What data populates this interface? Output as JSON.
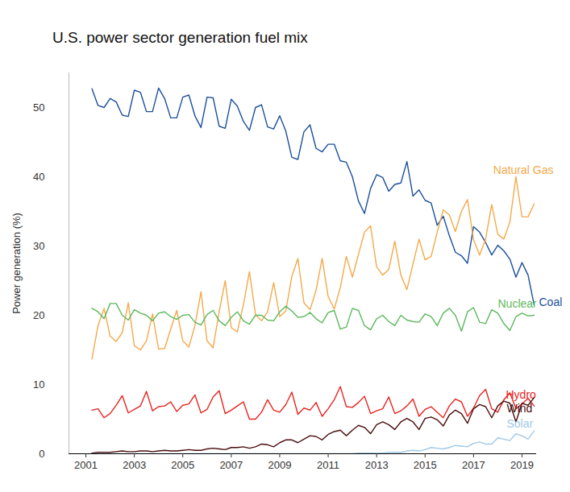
{
  "chart_data": {
    "type": "line",
    "title": "U.S. power sector generation fuel mix",
    "y_label": "Power generation (%)",
    "x": [
      2001.25,
      2001.5,
      2001.75,
      2002,
      2002.25,
      2002.5,
      2002.75,
      2003,
      2003.25,
      2003.5,
      2003.75,
      2004,
      2004.25,
      2004.5,
      2004.75,
      2005,
      2005.25,
      2005.5,
      2005.75,
      2006,
      2006.25,
      2006.5,
      2006.75,
      2007,
      2007.25,
      2007.5,
      2007.75,
      2008,
      2008.25,
      2008.5,
      2008.75,
      2009,
      2009.25,
      2009.5,
      2009.75,
      2010,
      2010.25,
      2010.5,
      2010.75,
      2011,
      2011.25,
      2011.5,
      2011.75,
      2012,
      2012.25,
      2012.5,
      2012.75,
      2013,
      2013.25,
      2013.5,
      2013.75,
      2014,
      2014.25,
      2014.5,
      2014.75,
      2015,
      2015.25,
      2015.5,
      2015.75,
      2016,
      2016.25,
      2016.5,
      2016.75,
      2017,
      2017.25,
      2017.5,
      2017.75,
      2018,
      2018.25,
      2018.5,
      2018.75,
      2019,
      2019.25,
      2019.5
    ],
    "xlim": [
      2000.3,
      2019.6
    ],
    "xticks": [
      2001,
      2003,
      2005,
      2007,
      2009,
      2011,
      2013,
      2015,
      2017,
      2019
    ],
    "ylim": [
      0,
      55
    ],
    "yticks": [
      0,
      10,
      20,
      30,
      40,
      50
    ],
    "grid": false,
    "series": [
      {
        "name": "Coal",
        "color": "#1b4f9c",
        "values": [
          52.7,
          50.3,
          50.0,
          51.3,
          50.8,
          48.9,
          48.7,
          52.5,
          52.2,
          49.4,
          49.4,
          52.8,
          51.3,
          48.5,
          48.5,
          51.5,
          51.8,
          48.8,
          47.1,
          51.5,
          51.4,
          47.3,
          47.0,
          51.2,
          50.2,
          48.0,
          46.7,
          50.0,
          50.4,
          47.2,
          46.9,
          48.8,
          46.6,
          42.8,
          42.5,
          46.5,
          47.5,
          44.1,
          43.6,
          44.7,
          44.7,
          42.3,
          42.1,
          40.0,
          36.5,
          34.7,
          38.3,
          40.3,
          39.9,
          37.9,
          38.9,
          39.1,
          42.2,
          37.2,
          38.1,
          36.6,
          36.2,
          33.0,
          34.3,
          31.5,
          29.1,
          28.6,
          27.5,
          32.8,
          32.0,
          30.5,
          28.7,
          30.1,
          29.3,
          28.1,
          25.5,
          27.6,
          25.8,
          21.5
        ]
      },
      {
        "name": "Natural Gas",
        "color": "#f5a94a",
        "values": [
          13.7,
          18.5,
          21.0,
          17.0,
          16.2,
          17.5,
          21.8,
          15.6,
          15.0,
          16.3,
          20.2,
          15.1,
          15.2,
          18.0,
          20.7,
          16.3,
          15.4,
          18.5,
          23.4,
          16.3,
          15.3,
          20.5,
          25.0,
          18.2,
          17.6,
          21.5,
          26.3,
          20.1,
          19.2,
          20.5,
          24.7,
          19.8,
          20.6,
          25.6,
          28.2,
          21.8,
          20.8,
          23.6,
          28.2,
          22.7,
          20.9,
          24.0,
          28.5,
          25.5,
          28.8,
          32.0,
          32.9,
          27.0,
          25.8,
          26.6,
          30.7,
          25.8,
          23.7,
          27.4,
          31.0,
          28.0,
          28.5,
          32.0,
          35.2,
          34.5,
          32.1,
          35.0,
          36.7,
          30.9,
          28.7,
          31.0,
          36.0,
          31.7,
          31.0,
          33.5,
          40.0,
          34.2,
          34.2,
          36.1
        ]
      },
      {
        "name": "Nuclear",
        "color": "#5cb85c",
        "values": [
          21.0,
          20.5,
          19.5,
          21.7,
          21.7,
          20.0,
          19.3,
          20.8,
          20.3,
          20.0,
          19.2,
          20.3,
          20.5,
          19.8,
          19.4,
          20.0,
          20.1,
          19.0,
          18.6,
          20.1,
          20.7,
          19.2,
          18.5,
          19.7,
          20.5,
          19.2,
          18.7,
          20.0,
          20.0,
          19.3,
          19.2,
          20.5,
          21.3,
          20.6,
          19.7,
          19.8,
          20.4,
          19.5,
          18.9,
          20.4,
          20.7,
          18.0,
          18.3,
          21.0,
          20.7,
          18.5,
          17.9,
          19.5,
          20.0,
          19.1,
          18.5,
          20.0,
          19.3,
          19.1,
          19.0,
          20.2,
          19.8,
          18.5,
          20.3,
          21.0,
          20.0,
          17.7,
          20.5,
          21.1,
          19.0,
          18.8,
          20.8,
          20.3,
          18.8,
          17.8,
          19.8,
          20.3,
          19.9,
          20.0
        ]
      },
      {
        "name": "Hydro",
        "color": "#e8231e",
        "values": [
          6.3,
          6.5,
          5.2,
          5.8,
          7.0,
          8.4,
          5.9,
          6.4,
          6.9,
          9.0,
          6.2,
          6.8,
          6.9,
          7.5,
          6.1,
          7.0,
          7.2,
          8.5,
          5.9,
          6.4,
          8.2,
          9.1,
          5.8,
          6.3,
          6.9,
          7.5,
          5.0,
          5.0,
          6.0,
          7.8,
          6.3,
          6.0,
          7.1,
          8.9,
          5.7,
          6.6,
          6.3,
          7.4,
          5.4,
          6.5,
          7.8,
          9.7,
          6.8,
          6.7,
          7.4,
          8.3,
          5.8,
          6.2,
          6.5,
          8.2,
          5.8,
          6.2,
          6.9,
          7.9,
          5.4,
          6.4,
          6.8,
          6.0,
          5.2,
          6.9,
          7.9,
          7.5,
          5.4,
          6.6,
          8.4,
          9.3,
          6.5,
          6.0,
          7.8,
          8.8,
          6.5,
          7.2,
          8.0,
          6.9
        ]
      },
      {
        "name": "Wind",
        "color": "#4a0d0d",
        "values": [
          0.1,
          0.2,
          0.2,
          0.2,
          0.3,
          0.4,
          0.3,
          0.3,
          0.4,
          0.4,
          0.3,
          0.4,
          0.5,
          0.4,
          0.4,
          0.5,
          0.6,
          0.5,
          0.5,
          0.7,
          0.8,
          0.7,
          0.6,
          0.9,
          0.9,
          1.0,
          0.8,
          1.0,
          1.4,
          1.3,
          1.0,
          1.6,
          2.0,
          2.0,
          1.6,
          2.1,
          2.6,
          2.5,
          2.0,
          2.8,
          3.2,
          3.4,
          2.6,
          3.4,
          4.1,
          3.8,
          2.9,
          4.2,
          4.6,
          4.2,
          3.5,
          4.6,
          5.1,
          4.6,
          3.5,
          5.1,
          5.3,
          4.9,
          4.0,
          5.6,
          6.3,
          5.8,
          4.4,
          6.5,
          7.1,
          6.8,
          5.2,
          6.9,
          7.6,
          7.3,
          4.6,
          7.3,
          7.0,
          8.1
        ]
      },
      {
        "name": "Solar",
        "color": "#9ec9e8",
        "values": [
          0.0,
          0.0,
          0.0,
          0.0,
          0.0,
          0.0,
          0.0,
          0.0,
          0.0,
          0.0,
          0.0,
          0.0,
          0.0,
          0.0,
          0.0,
          0.0,
          0.0,
          0.0,
          0.0,
          0.0,
          0.0,
          0.0,
          0.0,
          0.0,
          0.0,
          0.0,
          0.0,
          0.0,
          0.0,
          0.0,
          0.0,
          0.0,
          0.0,
          0.0,
          0.0,
          0.0,
          0.0,
          0.0,
          0.0,
          0.0,
          0.0,
          0.0,
          0.0,
          0.0,
          0.1,
          0.1,
          0.1,
          0.1,
          0.1,
          0.2,
          0.2,
          0.2,
          0.4,
          0.5,
          0.4,
          0.6,
          0.9,
          0.8,
          0.7,
          0.9,
          1.2,
          1.1,
          1.0,
          1.5,
          1.7,
          1.4,
          1.4,
          2.3,
          2.1,
          1.9,
          2.9,
          2.6,
          2.1,
          3.3
        ]
      }
    ]
  }
}
